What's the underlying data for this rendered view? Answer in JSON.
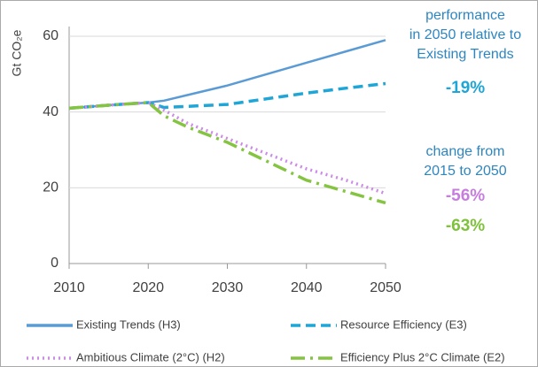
{
  "chart_data": {
    "type": "line",
    "y_label": "Gt CO₂e",
    "x": [
      2010,
      2015,
      2020,
      2022,
      2025,
      2030,
      2035,
      2040,
      2045,
      2050
    ],
    "xlim": [
      2010,
      2050
    ],
    "xticks": [
      2010,
      2020,
      2030,
      2040,
      2050
    ],
    "ylim": [
      0,
      60
    ],
    "yticks": [
      0,
      20,
      40,
      60
    ],
    "grid": true,
    "series": [
      {
        "name": "Existing Trends  (H3)",
        "color": "#5b9bd5",
        "style": "solid",
        "values": [
          41,
          41.8,
          42.5,
          43,
          44.5,
          47,
          50,
          53,
          56,
          59
        ]
      },
      {
        "name": "Resource Efficiency  (E3)",
        "color": "#1fa5d6",
        "style": "dashed",
        "values": [
          41,
          41.8,
          42.5,
          41.2,
          41.5,
          42,
          43.5,
          45,
          46.3,
          47.5
        ]
      },
      {
        "name": "Ambitious Climate (2°C)  (H2)",
        "color": "#cc8be6",
        "style": "dotted",
        "values": [
          41,
          41.8,
          42.5,
          40.5,
          37,
          33,
          29,
          25,
          22,
          18.5
        ]
      },
      {
        "name": "Efficiency Plus 2°C Climate  (E2)",
        "color": "#84c441",
        "style": "dashdot",
        "values": [
          41,
          41.8,
          42.5,
          39,
          36,
          32,
          27,
          22,
          19,
          16
        ]
      }
    ],
    "annotations": [
      {
        "text": "performance",
        "color": "#2e86c1"
      },
      {
        "text": "in 2050 relative to",
        "color": "#2e86c1"
      },
      {
        "text": "Existing Trends",
        "color": "#2e86c1"
      },
      {
        "text": "-19%",
        "color": "#1fa5d6"
      },
      {
        "text": "change from",
        "color": "#2e86c1"
      },
      {
        "text": "2015 to 2050",
        "color": "#2e86c1"
      },
      {
        "text": "-56%",
        "color": "#c77de0"
      },
      {
        "text": "-63%",
        "color": "#7ec13a"
      }
    ]
  }
}
